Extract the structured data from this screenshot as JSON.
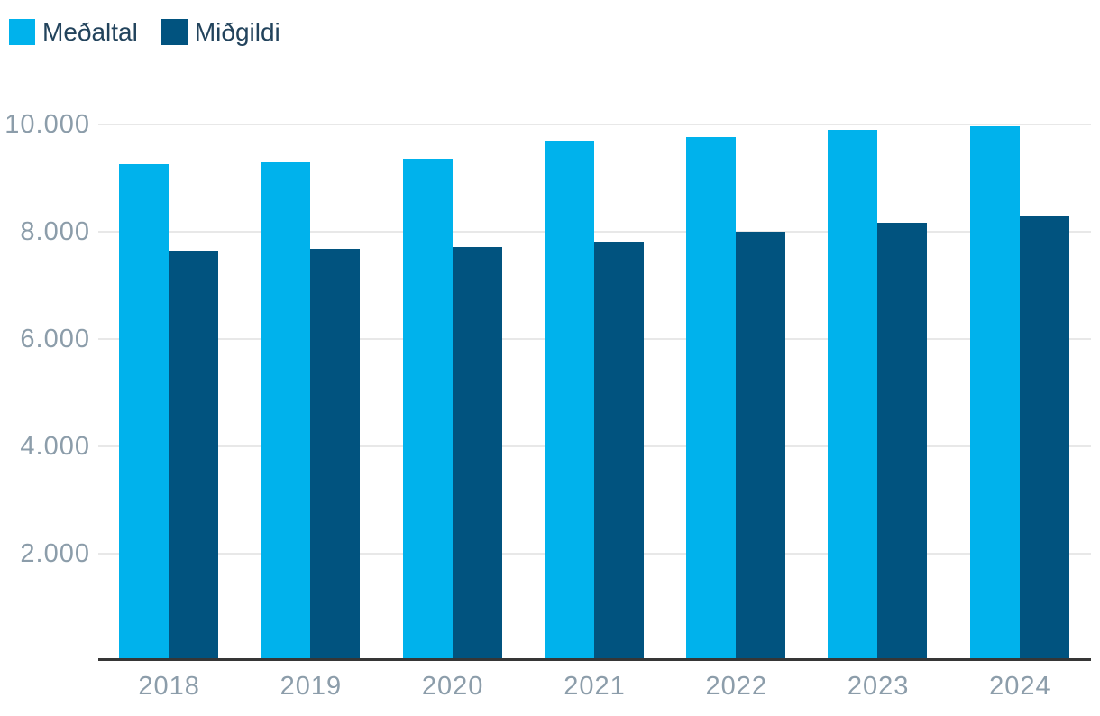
{
  "chart_data": {
    "type": "bar",
    "title": "",
    "xlabel": "",
    "ylabel": "",
    "categories": [
      "2018",
      "2019",
      "2020",
      "2021",
      "2022",
      "2023",
      "2024"
    ],
    "series": [
      {
        "name": "Meðaltal",
        "color": "#00b2ec",
        "values": [
          9260,
          9300,
          9360,
          9700,
          9760,
          9900,
          9960
        ]
      },
      {
        "name": "Miðgildi",
        "color": "#01537f",
        "values": [
          7640,
          7680,
          7710,
          7810,
          8000,
          8170,
          8290
        ]
      }
    ],
    "yticks": [
      {
        "value": 2000,
        "label": "2.000"
      },
      {
        "value": 4000,
        "label": "4.000"
      },
      {
        "value": 6000,
        "label": "6.000"
      },
      {
        "value": 8000,
        "label": "8.000"
      },
      {
        "value": 10000,
        "label": "10.000"
      }
    ],
    "ylim": [
      0,
      10640
    ],
    "grid": true,
    "legend_position": "top-left",
    "colors": {
      "background": "#ffffff",
      "grid_line": "#e8e8e8",
      "axis_line": "#363636",
      "tick_label": "#8c9daa",
      "legend_text": "#22435c"
    }
  }
}
